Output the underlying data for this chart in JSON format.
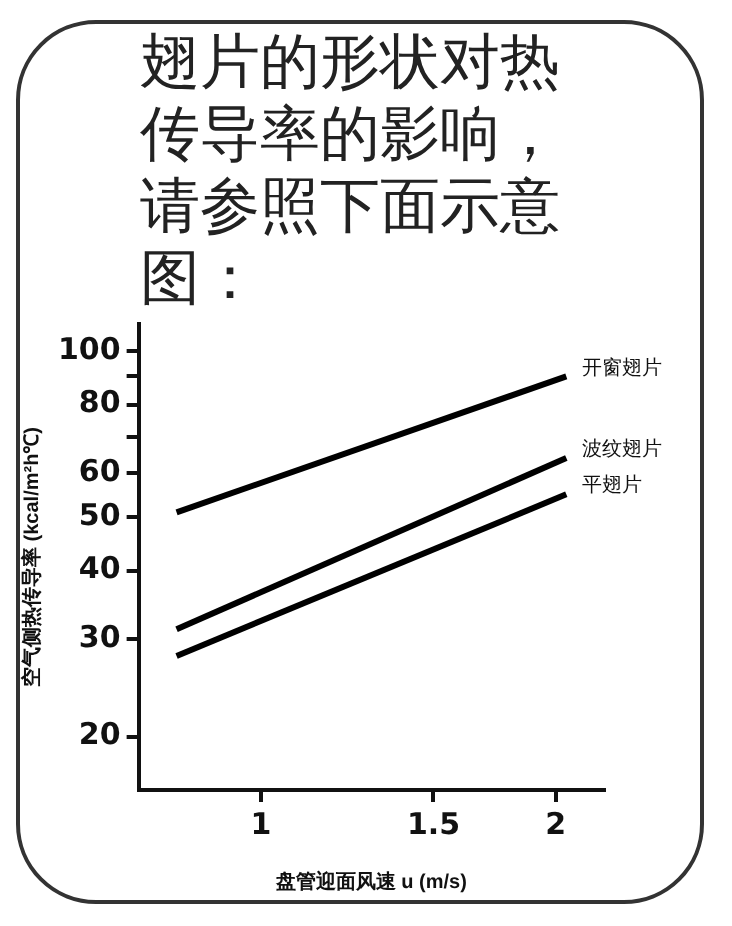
{
  "chart_data": {
    "type": "line",
    "title": "翅片的形状对热传导率的影响，请参照下面示意图：",
    "xlabel": "盘管迎面风速 u (m/s)",
    "ylabel": "空气侧热传导率 (kcal/m²h℃)",
    "x": [
      0.82,
      2.05
    ],
    "series": [
      {
        "name": "开窗翅片",
        "color": "#000000",
        "values": [
          51,
          90
        ]
      },
      {
        "name": "波纹翅片",
        "color": "#000000",
        "values": [
          31.3,
          64
        ]
      },
      {
        "name": "平翅片",
        "color": "#000000",
        "values": [
          28,
          55
        ]
      }
    ],
    "log": "xy",
    "xlim": [
      0.75,
      2.24
    ],
    "ylim": [
      16,
      112
    ],
    "xticks": [
      1,
      1.5,
      2
    ],
    "yticks": [
      20,
      30,
      40,
      50,
      60,
      {
        "value": 70,
        "label": null
      },
      80,
      {
        "value": 90,
        "label": null
      },
      100
    ],
    "legend": false,
    "line_style": "solid"
  }
}
